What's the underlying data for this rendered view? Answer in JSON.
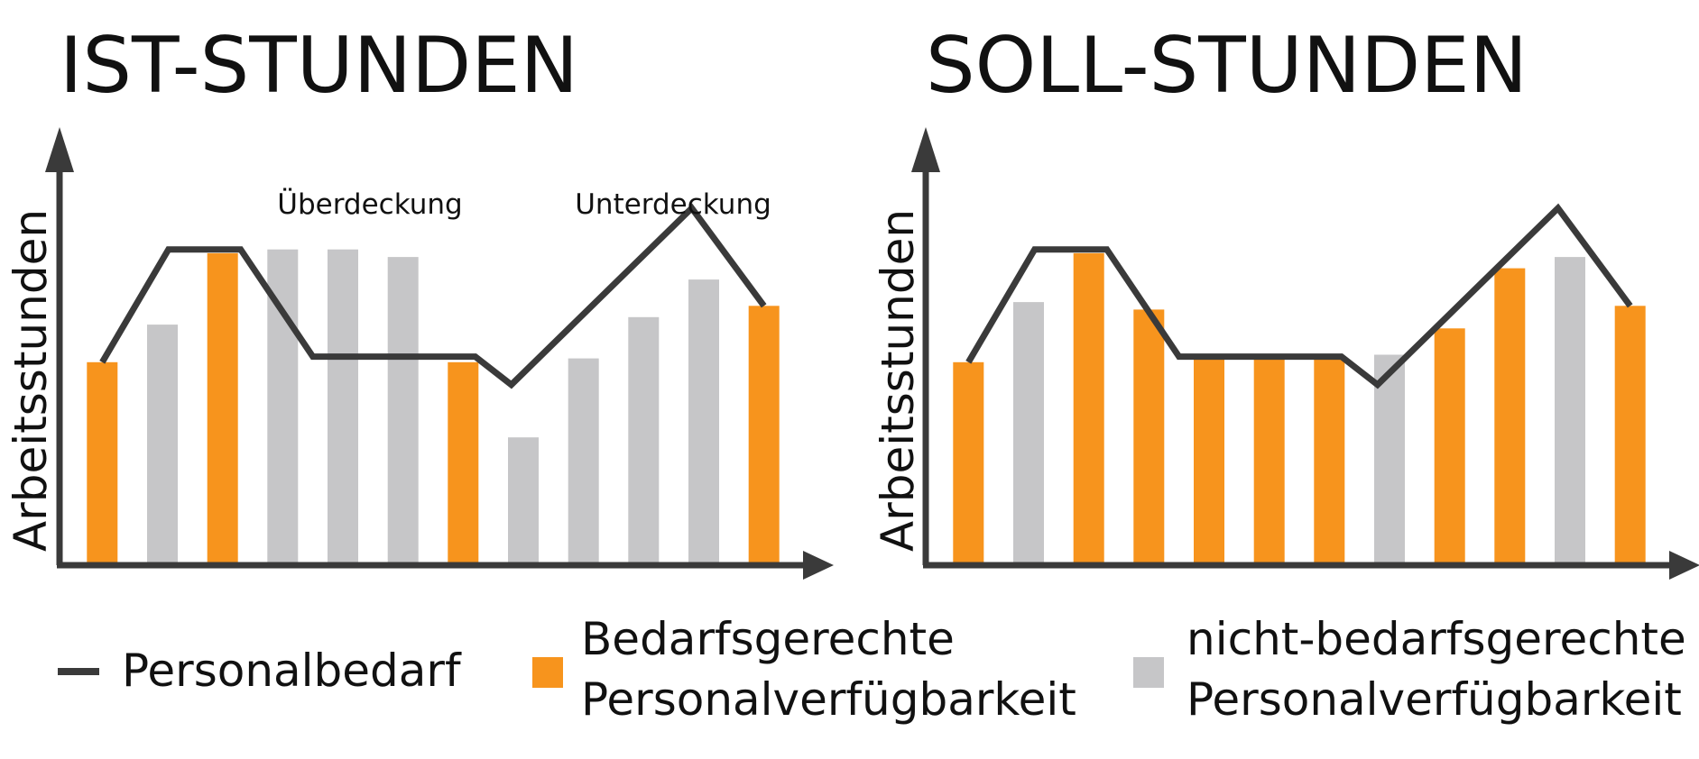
{
  "colors": {
    "bedarfsgerecht": "#F7941D",
    "nicht_bedarfsgerecht": "#C6C6C8",
    "line": "#3A3A3A",
    "axis": "#3A3A3A"
  },
  "legend": {
    "line": "Personalbedarf",
    "orange": [
      "Bedarfsgerechte",
      "Personalverfügbarkeit"
    ],
    "gray": [
      "nicht-bedarfsgerechte",
      "Personalverfügbarkeit"
    ]
  },
  "chart_data": [
    {
      "type": "bar",
      "title": "IST-STUNDEN",
      "ylabel": "Arbeitsstunden",
      "xlabel": "",
      "ylim": [
        0,
        100
      ],
      "grid": false,
      "annotations": [
        {
          "text": "Überdeckung",
          "x": 4.5
        },
        {
          "text": "Unterdeckung",
          "x": 9.5
        }
      ],
      "bars": [
        {
          "value": 54,
          "type": "bedarfsgerecht"
        },
        {
          "value": 64,
          "type": "nicht-bedarfsgerecht"
        },
        {
          "value": 83,
          "type": "bedarfsgerecht"
        },
        {
          "value": 84,
          "type": "nicht-bedarfsgerecht"
        },
        {
          "value": 84,
          "type": "nicht-bedarfsgerecht"
        },
        {
          "value": 82,
          "type": "nicht-bedarfsgerecht"
        },
        {
          "value": 54,
          "type": "bedarfsgerecht"
        },
        {
          "value": 34,
          "type": "nicht-bedarfsgerecht"
        },
        {
          "value": 55,
          "type": "nicht-bedarfsgerecht"
        },
        {
          "value": 66,
          "type": "nicht-bedarfsgerecht"
        },
        {
          "value": 76,
          "type": "nicht-bedarfsgerecht"
        },
        {
          "value": 69,
          "type": "bedarfsgerecht"
        }
      ],
      "demand": [
        {
          "x": 0.5,
          "y": 54
        },
        {
          "x": 1.6,
          "y": 84
        },
        {
          "x": 2.8,
          "y": 84
        },
        {
          "x": 4.0,
          "y": 55.5
        },
        {
          "x": 6.7,
          "y": 55.5
        },
        {
          "x": 7.3,
          "y": 48
        },
        {
          "x": 10.3,
          "y": 95
        },
        {
          "x": 11.5,
          "y": 69
        }
      ]
    },
    {
      "type": "bar",
      "title": "SOLL-STUNDEN",
      "ylabel": "Arbeitsstunden",
      "xlabel": "",
      "ylim": [
        0,
        100
      ],
      "grid": false,
      "annotations": [],
      "bars": [
        {
          "value": 54,
          "type": "bedarfsgerecht"
        },
        {
          "value": 70,
          "type": "nicht-bedarfsgerecht"
        },
        {
          "value": 83,
          "type": "bedarfsgerecht"
        },
        {
          "value": 68,
          "type": "bedarfsgerecht"
        },
        {
          "value": 55,
          "type": "bedarfsgerecht"
        },
        {
          "value": 55,
          "type": "bedarfsgerecht"
        },
        {
          "value": 55,
          "type": "bedarfsgerecht"
        },
        {
          "value": 56,
          "type": "nicht-bedarfsgerecht"
        },
        {
          "value": 63,
          "type": "bedarfsgerecht"
        },
        {
          "value": 79,
          "type": "bedarfsgerecht"
        },
        {
          "value": 82,
          "type": "nicht-bedarfsgerecht"
        },
        {
          "value": 69,
          "type": "bedarfsgerecht"
        }
      ],
      "demand": [
        {
          "x": 0.5,
          "y": 54
        },
        {
          "x": 1.6,
          "y": 84
        },
        {
          "x": 2.8,
          "y": 84
        },
        {
          "x": 4.0,
          "y": 55.5
        },
        {
          "x": 6.7,
          "y": 55.5
        },
        {
          "x": 7.3,
          "y": 48
        },
        {
          "x": 10.3,
          "y": 95
        },
        {
          "x": 11.5,
          "y": 69
        }
      ]
    }
  ]
}
